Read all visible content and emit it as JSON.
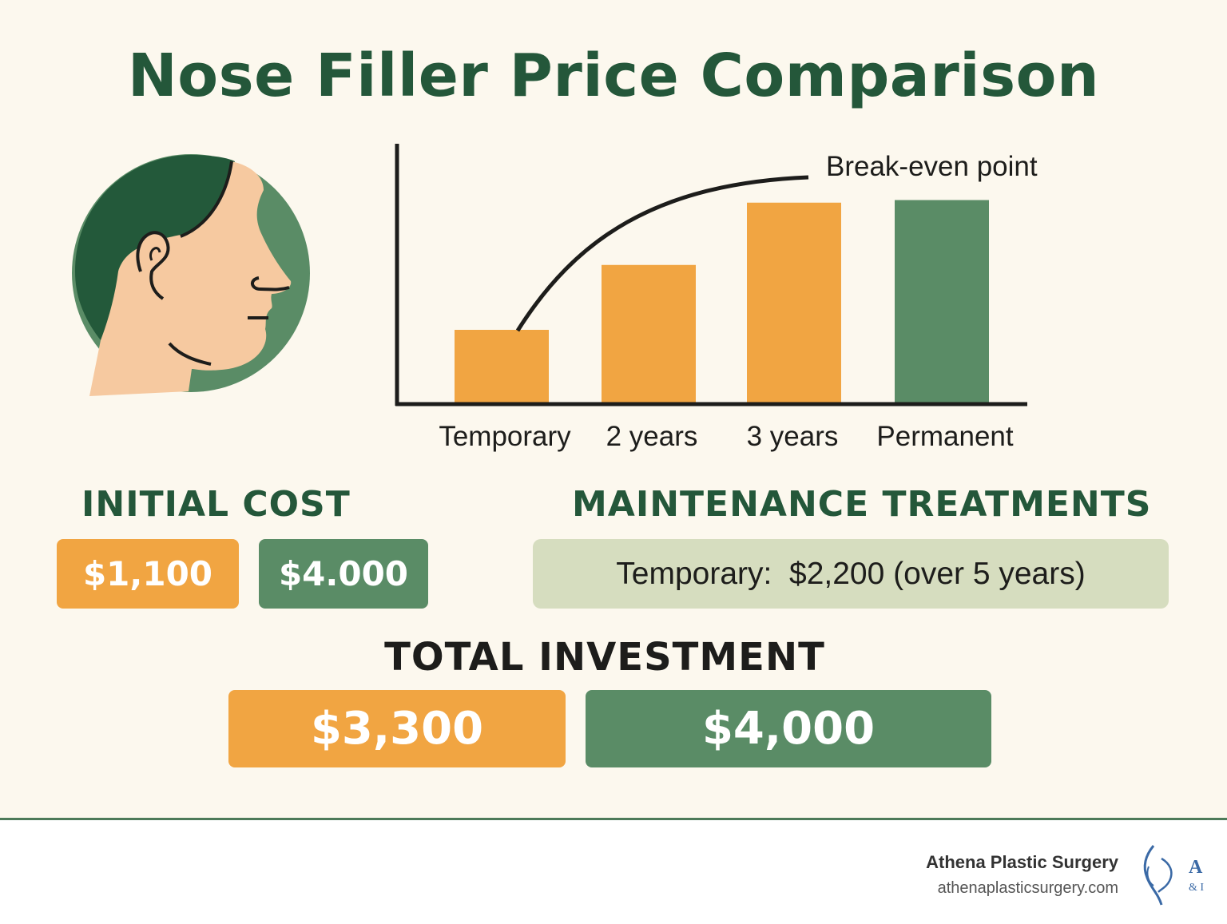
{
  "title": "Nose Filler Price Comparison",
  "colors": {
    "orange": "#f1a542",
    "green": "#5a8c66",
    "dark_green": "#24573a",
    "background": "#fcf8ee",
    "maintenance_box": "#d6ddbf"
  },
  "chart_data": {
    "type": "bar",
    "categories": [
      "Temporary",
      "2 years",
      "3 years",
      "Permanent"
    ],
    "values": [
      0.28,
      0.53,
      0.77,
      0.78
    ],
    "value_unit": "relative cumulative cost (no axis scale printed)",
    "bar_colors": [
      "#f1a542",
      "#f1a542",
      "#f1a542",
      "#5a8c66"
    ],
    "annotation": "Break-even point",
    "curve": "cumulative cost curve rising from the Temporary bar and flattening toward the break-even point",
    "grid": false,
    "axis_ticks": false
  },
  "initial_cost": {
    "label": "INITIAL COST",
    "temporary": "$1,100",
    "permanent": "$4.000"
  },
  "maintenance": {
    "label": "MAINTENANCE TREATMENTS",
    "prefix": "Temporary:",
    "value": "$2,200 (over 5 years)"
  },
  "total_investment": {
    "label": "TOTAL INVESTMENT",
    "temporary": "$3,300",
    "permanent": "$4,000"
  },
  "footer": {
    "brand": "Athena Plastic Surgery",
    "url": "athenaplasticsurgery.com",
    "logo_letter": "A",
    "logo_sub": "& I"
  },
  "icons": [
    "head-profile-icon",
    "athena-logo-icon"
  ]
}
